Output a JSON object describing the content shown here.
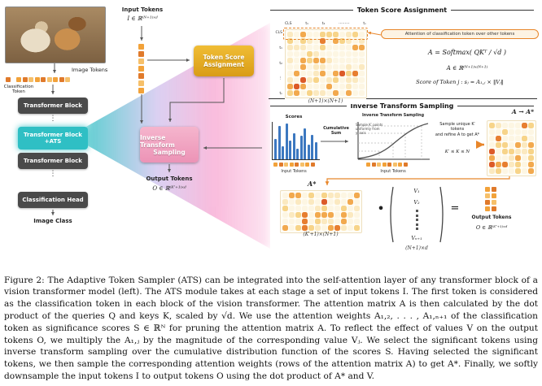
{
  "palette": {
    "heat": [
      "#fdf6e3",
      "#fbe9c0",
      "#f7d489",
      "#f2a94e",
      "#e77e30",
      "#dc5a28"
    ],
    "token": [
      "#f2a23a",
      "#e07a2b",
      "#f6c06a"
    ],
    "accent_orange": "#e8862a",
    "bar_blue": "#3c78c0"
  },
  "left": {
    "image_tokens_label": "Image Tokens",
    "cls_token_label": "Classification\nToken",
    "blocks": {
      "b1": "Transformer Block",
      "ats1": "Transformer Block",
      "ats2": "+ATS",
      "b2": "Transformer Block",
      "head": "Classification Head"
    },
    "dots": "⋮",
    "image_class_label": "Image Class",
    "image_token_count": 9
  },
  "middle": {
    "input_tokens_label": "Input Tokens",
    "input_tokens_math": "I ∈ ℝ⁽ᴺ⁺¹⁾ˣᵈ",
    "input_strip_count": 7,
    "tsa_box_line1": "Token Score",
    "tsa_box_line2": "Assignment",
    "its_box_line1": "Inverse Transform",
    "its_box_line2": "Sampling",
    "output_tokens_label": "Output Tokens",
    "output_tokens_math": "O ∈ ℝ⁽ᴷ′⁺¹⁾ˣᵈ"
  },
  "tsa": {
    "title": "Token Score Assignment",
    "col_labels": [
      "CLS",
      "t₁",
      "t₂",
      "⋯⋯⋯",
      "tₙ"
    ],
    "row_labels": [
      "CLS",
      "t₁",
      "t₂",
      "⋮",
      "tₙ"
    ],
    "matrix": {
      "rows": 10,
      "cols": 12,
      "seed": 11
    },
    "dims": "(N+1)×(N+1)",
    "callout": "Attention of classification token over other tokens",
    "formula_softmax": "A = Softmax( QKᵀ ∕ √d )",
    "formula_dims": "A ∈ ℝ⁽ᴺ⁺¹⁾ˣ⁽ᴺ⁺¹⁾",
    "formula_score": "Score of Token j :   sⱼ = A₁,ⱼ × ‖Vⱼ‖"
  },
  "its": {
    "title": "Inverse Transform Sampling",
    "a_to_astar": "A → A*",
    "scores_label": "Scores",
    "bars": [
      0.55,
      0.9,
      0.35,
      0.95,
      0.5,
      0.7,
      0.28,
      0.62,
      0.82,
      0.4,
      0.66,
      0.45
    ],
    "bars_input_label": "Input Tokens",
    "bars_token_count": 8,
    "cumsum_label": "Cumulative Sum",
    "cdf_title": "Inverse Transform Sampling",
    "cdf_note": "Sample K′ points\nuniformly from\ny′ axis",
    "cdf_input_label": "Input Tokens",
    "cdf_token_count": 8,
    "select_note": "Sample unique K′ tokens\nand refine A to get A*",
    "k_constraint": "K′ ≤ K ≤ N",
    "sel_matrix": {
      "rows": 8,
      "cols": 7,
      "seed": 23
    }
  },
  "eq": {
    "astar_label": "A*",
    "astar_matrix": {
      "rows": 6,
      "cols": 12,
      "seed": 37
    },
    "astar_dims": "(K′+1)×(N+1)",
    "dot": "•",
    "v_entries": [
      "V₁",
      "V₂",
      "Vₙ₊₁"
    ],
    "v_dots_count": 5,
    "v_dims": "(N+1)×d",
    "equals": "=",
    "out_count": 8,
    "output_tokens_label": "Output Tokens",
    "output_tokens_math": "O ∈ ℝ⁽ᴷ′⁺¹⁾ˣᵈ"
  },
  "caption": "Figure 2: The Adaptive Token Sampler (ATS) can be integrated into the self-attention layer of any transformer block of a vision transformer model (left). The ATS module takes at each stage a set of input tokens I. The first token is considered as the classification token in each block of the vision transformer. The attention matrix A is then calculated by the dot product of the queries Q and keys K, scaled by √d. We use the attention weights A₁,₂, . . . , A₁,ₙ₊₁ of the classification token as significance scores S ∈ ℝᴺ for pruning the attention matrix A. To reflect the effect of values V on the output tokens O, we multiply the A₁,ⱼ by the magnitude of the corresponding value Vⱼ. We select the significant tokens using inverse transform sampling over the cumulative distribution function of the scores S. Having selected the significant tokens, we then sample the corresponding attention weights (rows of the attention matrix A) to get A*. Finally, we softly downsample the input tokens I to output tokens O using the dot product of A* and V."
}
